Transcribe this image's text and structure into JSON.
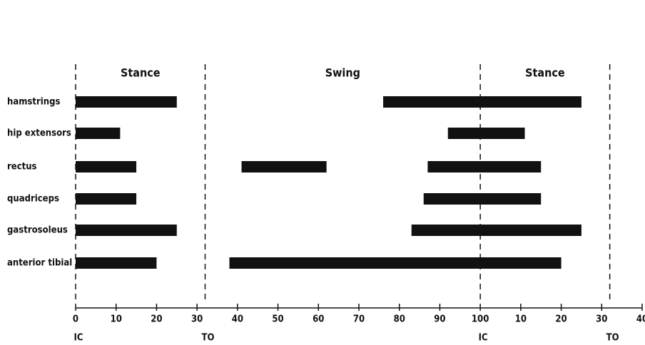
{
  "chart_data": {
    "type": "range_bar",
    "color": "#111111",
    "xlim": [
      0,
      140
    ],
    "xticks": [
      0,
      10,
      20,
      30,
      40,
      50,
      60,
      70,
      80,
      90,
      100,
      {
        "value": 110,
        "label": "10"
      },
      {
        "value": 120,
        "label": "20"
      },
      {
        "value": 130,
        "label": "30"
      },
      {
        "value": 140,
        "label": "40"
      }
    ],
    "events": [
      {
        "value": 0,
        "label": "IC"
      },
      {
        "value": 32,
        "label": "TO"
      },
      {
        "value": 100,
        "label": "IC"
      },
      {
        "value": 132,
        "label": "TO"
      }
    ],
    "phases": [
      {
        "label": "Stance",
        "start": 0,
        "end": 32
      },
      {
        "label": "Swing",
        "start": 32,
        "end": 100
      },
      {
        "label": "Stance",
        "start": 100,
        "end": 132
      }
    ],
    "rows": [
      {
        "name": "hamstrings",
        "ranges": [
          [
            0,
            25
          ],
          [
            76,
            125
          ]
        ]
      },
      {
        "name": "hip extensors",
        "ranges": [
          [
            0,
            11
          ],
          [
            92,
            111
          ]
        ]
      },
      {
        "name": "rectus",
        "ranges": [
          [
            0,
            15
          ],
          [
            41,
            62
          ],
          [
            87,
            115
          ]
        ]
      },
      {
        "name": "quadriceps",
        "ranges": [
          [
            0,
            15
          ],
          [
            86,
            115
          ]
        ]
      },
      {
        "name": "gastrosoleus",
        "ranges": [
          [
            0,
            25
          ],
          [
            83,
            125
          ]
        ]
      },
      {
        "name": "anterior tibial",
        "ranges": [
          [
            0,
            20
          ],
          [
            38,
            120
          ]
        ]
      }
    ]
  }
}
